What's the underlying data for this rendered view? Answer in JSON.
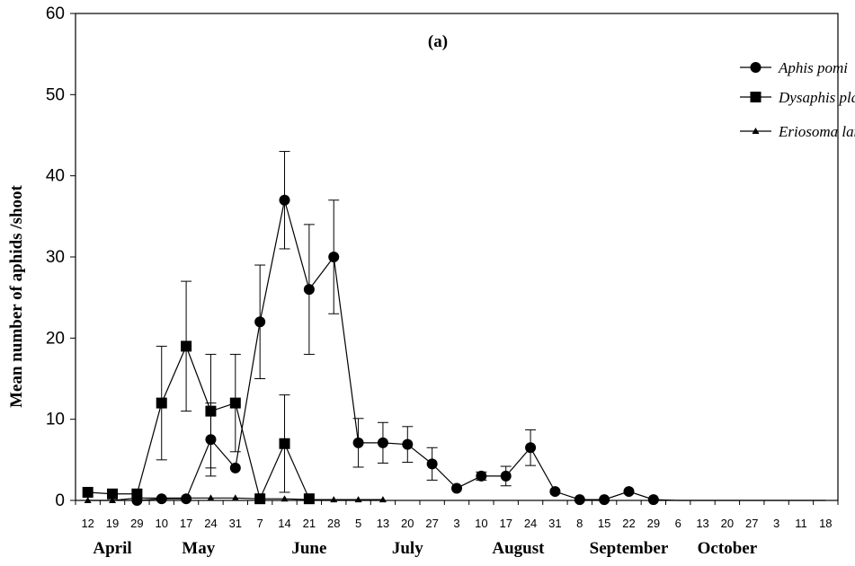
{
  "chart_data": {
    "type": "line",
    "panel_label": "(a)",
    "ylabel": "Mean number of aphids /shoot",
    "ylim": [
      0,
      60
    ],
    "yticks": [
      0,
      10,
      20,
      30,
      40,
      50,
      60
    ],
    "x_tick_labels": [
      "12",
      "19",
      "29",
      "10",
      "17",
      "24",
      "31",
      "7",
      "14",
      "21",
      "28",
      "5",
      "13",
      "20",
      "27",
      "3",
      "10",
      "17",
      "24",
      "31",
      "8",
      "15",
      "22",
      "29",
      "6",
      "13",
      "20",
      "27",
      "3",
      "11",
      "18"
    ],
    "months": [
      {
        "label": "April",
        "center_index": 1
      },
      {
        "label": "May",
        "center_index": 4.5
      },
      {
        "label": "June",
        "center_index": 9
      },
      {
        "label": "July",
        "center_index": 13
      },
      {
        "label": "August",
        "center_index": 17.5
      },
      {
        "label": "September",
        "center_index": 22
      },
      {
        "label": "October",
        "center_index": 26
      }
    ],
    "grid": false,
    "legend_placement": "top-right",
    "series": [
      {
        "name": "Aphis pomi",
        "marker": "circle",
        "values": [
          null,
          null,
          0,
          0.2,
          0.2,
          7.5,
          4,
          22,
          37,
          26,
          30,
          7.1,
          7.1,
          6.9,
          4.5,
          1.5,
          3,
          3,
          6.5,
          1.1,
          0.1,
          0.1,
          1.1,
          0.1,
          0,
          0,
          0,
          0,
          0,
          0,
          0
        ],
        "errors": [
          null,
          null,
          null,
          null,
          null,
          4.5,
          null,
          7,
          6,
          8,
          7,
          3,
          2.5,
          2.2,
          2,
          null,
          0.5,
          1.2,
          2.2,
          null,
          null,
          null,
          null,
          null,
          null,
          null,
          null,
          null,
          null,
          null,
          null
        ]
      },
      {
        "name": "Dysaphis plantaginea",
        "marker": "square",
        "values": [
          1,
          0.8,
          0.8,
          12,
          19,
          11,
          12,
          0.2,
          7,
          0.2,
          null,
          null,
          null,
          null,
          null,
          null,
          null,
          null,
          null,
          null,
          null,
          null,
          null,
          null,
          null,
          null,
          null,
          null,
          null,
          null,
          null
        ],
        "errors": [
          null,
          null,
          null,
          7,
          8,
          7,
          6,
          null,
          6,
          null,
          null,
          null,
          null,
          null,
          null,
          null,
          null,
          null,
          null,
          null,
          null,
          null,
          null,
          null,
          null,
          null,
          null,
          null,
          null,
          null,
          null
        ]
      },
      {
        "name": "Eriosoma lanigerum",
        "marker": "triangle",
        "values": [
          0,
          0,
          0.3,
          0.3,
          0.3,
          0.3,
          0.3,
          0.2,
          0.2,
          0.1,
          0.1,
          0.1,
          0.1,
          null,
          null,
          null,
          null,
          null,
          null,
          null,
          null,
          null,
          null,
          null,
          null,
          null,
          null,
          null,
          null,
          null,
          null
        ],
        "errors": []
      }
    ]
  }
}
